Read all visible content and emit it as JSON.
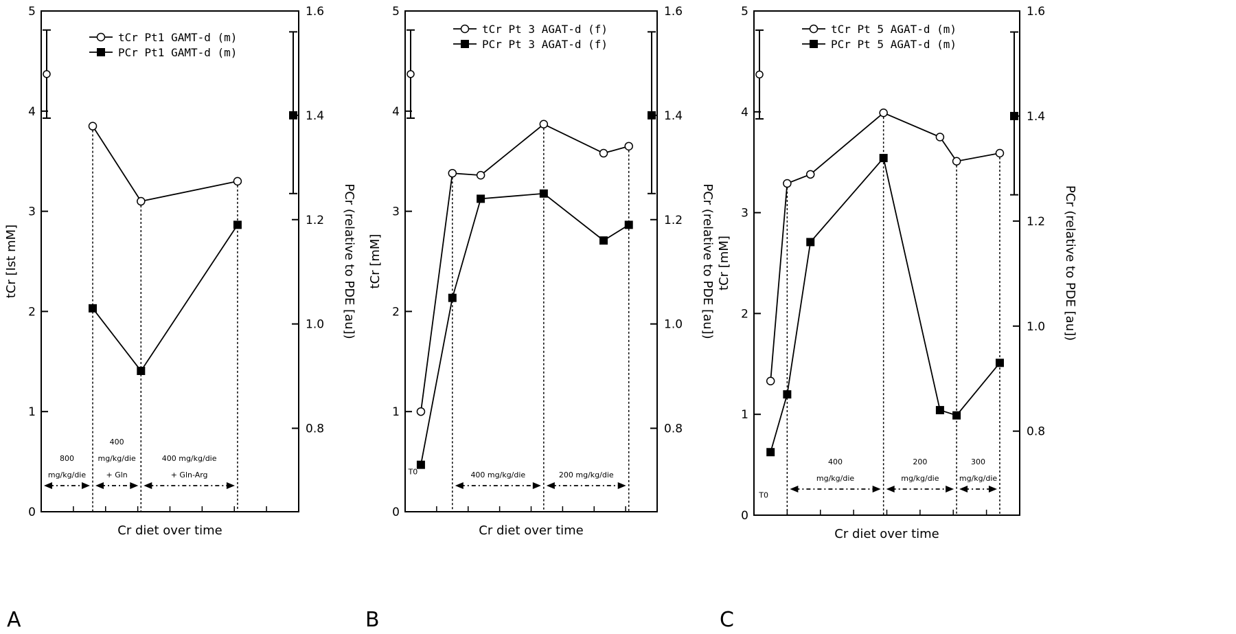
{
  "figure": {
    "panels": [
      "A",
      "B",
      "C"
    ]
  },
  "chart_data": [
    {
      "type": "line",
      "panel": "A",
      "xlabel": "Cr diet over time",
      "ylabel": "tCr [Ist mM]",
      "y2label": "PCr (relative to PDE [au])",
      "ylim": [
        0,
        5
      ],
      "y2lim": [
        0.64,
        1.6
      ],
      "yticks": [
        "0",
        "1",
        "2",
        "3",
        "4",
        "5"
      ],
      "y2ticks": [
        "0.8",
        "1.0",
        "1.2",
        "1.4",
        "1.6"
      ],
      "xlim": [
        0,
        8
      ],
      "series": [
        {
          "name": "tCr Pt1 GAMT-d (m)",
          "axis": "left",
          "marker": "open-circle",
          "x": [
            1.6,
            3.1,
            6.1
          ],
          "values": [
            3.85,
            3.1,
            3.3
          ]
        },
        {
          "name": "PCr Pt1 GAMT-d (m)",
          "axis": "right",
          "marker": "filled-square",
          "x": [
            1.6,
            3.1,
            6.1
          ],
          "values": [
            1.03,
            0.91,
            1.19
          ]
        }
      ],
      "reference": [
        {
          "axis": "left",
          "marker": "open-circle",
          "value": 4.37,
          "low": 3.93,
          "high": 4.81
        },
        {
          "axis": "right",
          "marker": "filled-square",
          "value": 1.4,
          "low": 1.25,
          "high": 1.56
        }
      ],
      "dashed_lines_x": [
        1.6,
        3.1,
        6.1
      ],
      "phases": [
        {
          "lines": [
            "800",
            "mg/kg/die"
          ],
          "from": 0,
          "to": 1.6
        },
        {
          "lines": [
            "400",
            "mg/kg/die",
            "+ Gln"
          ],
          "from": 1.6,
          "to": 3.1
        },
        {
          "lines": [
            "400 mg/kg/die",
            "+ Gln-Arg"
          ],
          "from": 3.1,
          "to": 6.1
        }
      ],
      "extra_labels": []
    },
    {
      "type": "line",
      "panel": "B",
      "xlabel": "Cr diet over time",
      "ylabel": "tCr [mM]",
      "y2label": "PCr (relative to PDE [au])",
      "ylim": [
        0,
        5
      ],
      "y2lim": [
        0.64,
        1.6
      ],
      "yticks": [
        "0",
        "1",
        "2",
        "3",
        "4",
        "5"
      ],
      "y2ticks": [
        "0.8",
        "1.0",
        "1.2",
        "1.4",
        "1.6"
      ],
      "xlim": [
        0,
        8
      ],
      "series": [
        {
          "name": "tCr Pt 3 AGAT-d (f)",
          "axis": "left",
          "marker": "open-circle",
          "x": [
            0.5,
            1.5,
            2.4,
            4.4,
            6.3,
            7.1
          ],
          "values": [
            1.0,
            3.38,
            3.36,
            3.87,
            3.58,
            3.65
          ]
        },
        {
          "name": "PCr Pt 3 AGAT-d (f)",
          "axis": "right",
          "marker": "filled-square",
          "x": [
            0.5,
            1.5,
            2.4,
            4.4,
            6.3,
            7.1
          ],
          "values": [
            0.73,
            1.05,
            1.24,
            1.25,
            1.16,
            1.19
          ]
        }
      ],
      "reference": [
        {
          "axis": "left",
          "marker": "open-circle",
          "value": 4.37,
          "low": 3.93,
          "high": 4.81
        },
        {
          "axis": "right",
          "marker": "filled-square",
          "value": 1.4,
          "low": 1.25,
          "high": 1.56
        }
      ],
      "dashed_lines_x": [
        1.5,
        4.4,
        7.1
      ],
      "phases": [
        {
          "lines": [
            "400 mg/kg/die"
          ],
          "from": 1.5,
          "to": 4.4
        },
        {
          "lines": [
            "200 mg/kg/die"
          ],
          "from": 4.4,
          "to": 7.1
        }
      ],
      "extra_labels": [
        {
          "text": "T0",
          "x": 0.1,
          "y": 0.4
        }
      ]
    },
    {
      "type": "line",
      "panel": "C",
      "xlabel": "Cr diet over time",
      "ylabel": "tCr [mM]",
      "y2label": "PCr (relative to PDE [au])",
      "ylim": [
        0,
        5
      ],
      "y2lim": [
        0.64,
        1.6
      ],
      "yticks": [
        "0",
        "1",
        "2",
        "3",
        "4",
        "5"
      ],
      "y2ticks": [
        "0.8",
        "1.0",
        "1.2",
        "1.4",
        "1.6"
      ],
      "xlim": [
        0,
        8
      ],
      "series": [
        {
          "name": "tCr Pt 5 AGAT-d (m)",
          "axis": "left",
          "marker": "open-circle",
          "x": [
            0.5,
            1.0,
            1.7,
            3.9,
            5.6,
            6.1,
            7.4
          ],
          "values": [
            1.33,
            3.29,
            3.38,
            3.99,
            3.75,
            3.51,
            3.59
          ]
        },
        {
          "name": "PCr Pt 5 AGAT-d (m)",
          "axis": "right",
          "marker": "filled-square",
          "x": [
            0.5,
            1.0,
            1.7,
            3.9,
            5.6,
            6.1,
            7.4
          ],
          "values": [
            0.76,
            0.87,
            1.16,
            1.32,
            0.84,
            0.83,
            0.93
          ]
        }
      ],
      "reference": [
        {
          "axis": "left",
          "marker": "open-circle",
          "value": 4.37,
          "low": 3.93,
          "high": 4.81
        },
        {
          "axis": "right",
          "marker": "filled-square",
          "value": 1.4,
          "low": 1.25,
          "high": 1.56
        }
      ],
      "dashed_lines_x": [
        1.0,
        3.9,
        6.1,
        7.4
      ],
      "phases": [
        {
          "lines": [
            "400",
            "mg/kg/die"
          ],
          "from": 1.0,
          "to": 3.9
        },
        {
          "lines": [
            "200",
            "mg/kg/die"
          ],
          "from": 3.9,
          "to": 6.1
        },
        {
          "lines": [
            "300",
            "mg/kg/die"
          ],
          "from": 6.1,
          "to": 7.4
        }
      ],
      "extra_labels": [
        {
          "text": "T0",
          "x": 0.15,
          "y": 0.2
        }
      ]
    }
  ]
}
